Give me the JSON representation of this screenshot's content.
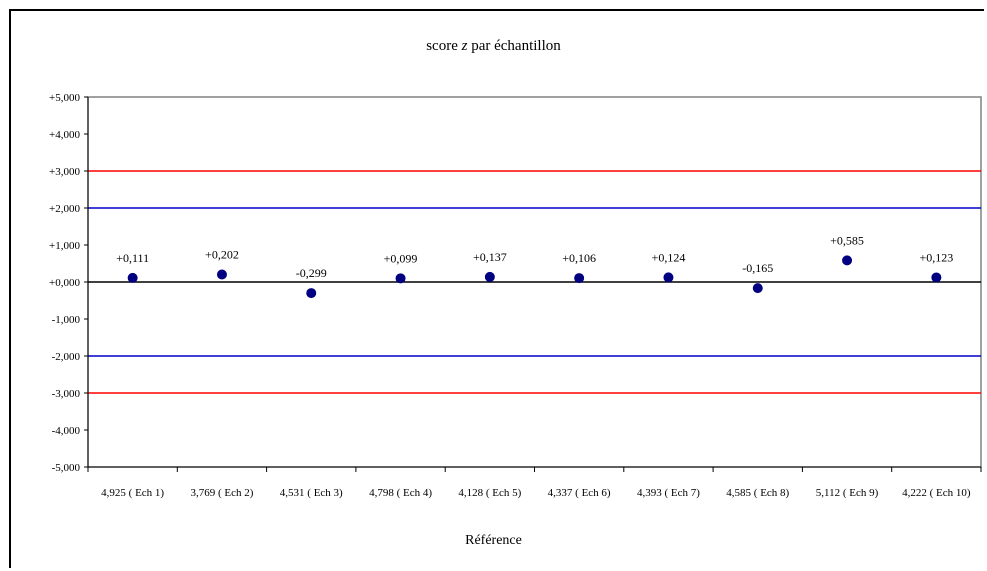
{
  "chart_data": {
    "type": "scatter",
    "title_prefix": "score ",
    "title_var": "z",
    "title_suffix": " par échantillon",
    "xlabel": "Référence",
    "ylabel": "",
    "ylim": [
      -5,
      5
    ],
    "yticks": [
      5,
      4,
      3,
      2,
      1,
      0,
      -1,
      -2,
      -3,
      -4,
      -5
    ],
    "ytick_labels": [
      "+5,000",
      "+4,000",
      "+3,000",
      "+2,000",
      "+1,000",
      "+0,000",
      "-1,000",
      "-2,000",
      "-3,000",
      "-4,000",
      "-5,000"
    ],
    "categories": [
      "4,925 ( Ech 1)",
      "3,769 ( Ech 2)",
      "4,531 ( Ech 3)",
      "4,798 ( Ech 4)",
      "4,128 ( Ech 5)",
      "4,337 ( Ech 6)",
      "4,393 ( Ech 7)",
      "4,585 ( Ech 8)",
      "5,112 ( Ech 9)",
      "4,222 ( Ech 10)"
    ],
    "values": [
      0.111,
      0.202,
      -0.299,
      0.099,
      0.137,
      0.106,
      0.124,
      -0.165,
      0.585,
      0.123
    ],
    "value_labels": [
      "+0,111",
      "+0,202",
      "-0,299",
      "+0,099",
      "+0,137",
      "+0,106",
      "+0,124",
      "-0,165",
      "+0,585",
      "+0,123"
    ],
    "reference_lines": [
      {
        "y": 3,
        "color": "#ff0000"
      },
      {
        "y": 2,
        "color": "#0000cc"
      },
      {
        "y": 0,
        "color": "#000000"
      },
      {
        "y": -2,
        "color": "#0000cc"
      },
      {
        "y": -3,
        "color": "#ff0000"
      }
    ],
    "marker_color": "#000080",
    "plot_background": "#ffffff",
    "plot_border": "#808080",
    "grid": false,
    "legend": "none"
  }
}
